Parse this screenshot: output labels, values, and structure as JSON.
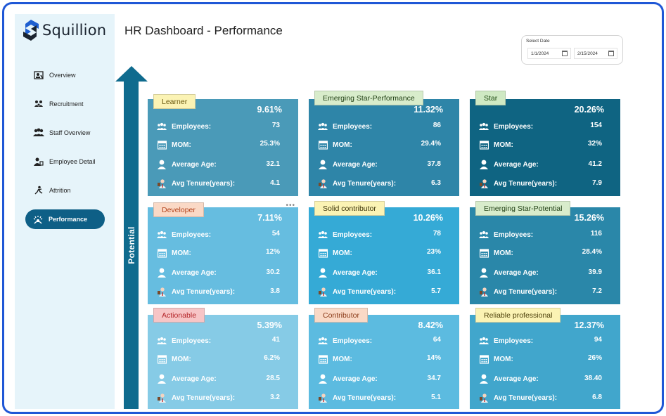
{
  "app": {
    "brand": "Squillion",
    "title": "HR Dashboard - Performance"
  },
  "sidebar": {
    "items": [
      {
        "label": "Overview",
        "icon": "overview-icon",
        "active": false
      },
      {
        "label": "Recruitment",
        "icon": "recruitment-icon",
        "active": false
      },
      {
        "label": "Staff Overview",
        "icon": "staff-icon",
        "active": false
      },
      {
        "label": "Employee Detail",
        "icon": "employee-detail-icon",
        "active": false
      },
      {
        "label": "Attrition",
        "icon": "attrition-icon",
        "active": false
      },
      {
        "label": "Performance",
        "icon": "performance-icon",
        "active": true
      }
    ]
  },
  "date_filter": {
    "label": "Select Date",
    "start": "1/1/2024",
    "end": "2/15/2024"
  },
  "axis_label": "Potential",
  "field_labels": {
    "employees": "Employees:",
    "mom": "MOM:",
    "age": "Average Age:",
    "tenure": "Avg Tenure(years):"
  },
  "cards": [
    {
      "name": "Learner",
      "pct": "9.61%",
      "employees": "73",
      "mom": "25.3%",
      "age": "32.1",
      "tenure": "4.1",
      "bg": "#4a9ab8",
      "tag_bg": "#fbf3b4",
      "tag_color": "#6b5a10"
    },
    {
      "name": "Emerging Star-Performance",
      "pct": "11.32%",
      "employees": "86",
      "mom": "29.4%",
      "age": "37.8",
      "tenure": "6.3",
      "bg": "#2e85a8",
      "tag_bg": "#d8eccb",
      "tag_color": "#1e3d12"
    },
    {
      "name": "Star",
      "pct": "20.26%",
      "employees": "154",
      "mom": "32%",
      "age": "41.2",
      "tenure": "7.9",
      "bg": "#0f6482",
      "tag_bg": "#cfe9c3",
      "tag_color": "#1e4a12"
    },
    {
      "name": "Developer",
      "pct": "7.11%",
      "employees": "54",
      "mom": "12%",
      "age": "30.2",
      "tenure": "3.8",
      "bg": "#66bde0",
      "tag_bg": "#fad9c6",
      "tag_color": "#b2421b"
    },
    {
      "name": "Solid contributor",
      "pct": "10.26%",
      "employees": "78",
      "mom": "23%",
      "age": "36.1",
      "tenure": "5.7",
      "bg": "#35aad6",
      "tag_bg": "#fbf3b4",
      "tag_color": "#3a3208"
    },
    {
      "name": "Emerging Star-Potential",
      "pct": "15.26%",
      "employees": "116",
      "mom": "28.4%",
      "age": "39.9",
      "tenure": "7.2",
      "bg": "#2a87a9",
      "tag_bg": "#d8eccb",
      "tag_color": "#1e3d12"
    },
    {
      "name": "Actionable",
      "pct": "5.39%",
      "employees": "41",
      "mom": "6.2%",
      "age": "28.5",
      "tenure": "3.2",
      "bg": "#86cbe6",
      "tag_bg": "#f7c5c6",
      "tag_color": "#b4262a"
    },
    {
      "name": "Contributor",
      "pct": "8.42%",
      "employees": "64",
      "mom": "14%",
      "age": "34.7",
      "tenure": "5.1",
      "bg": "#5cbbe0",
      "tag_bg": "#fad9c6",
      "tag_color": "#8a3a18"
    },
    {
      "name": "Reliable professional",
      "pct": "12.37%",
      "employees": "94",
      "mom": "26%",
      "age": "38.40",
      "tenure": "6.8",
      "bg": "#41a6cc",
      "tag_bg": "#fbf3b4",
      "tag_color": "#4a3e08"
    }
  ],
  "colors": {
    "frame_border": "#1f57d6",
    "sidebar_bg": "#e6f4fa",
    "nav_active": "#0e5f86",
    "arrow": "#0f6b8e"
  }
}
